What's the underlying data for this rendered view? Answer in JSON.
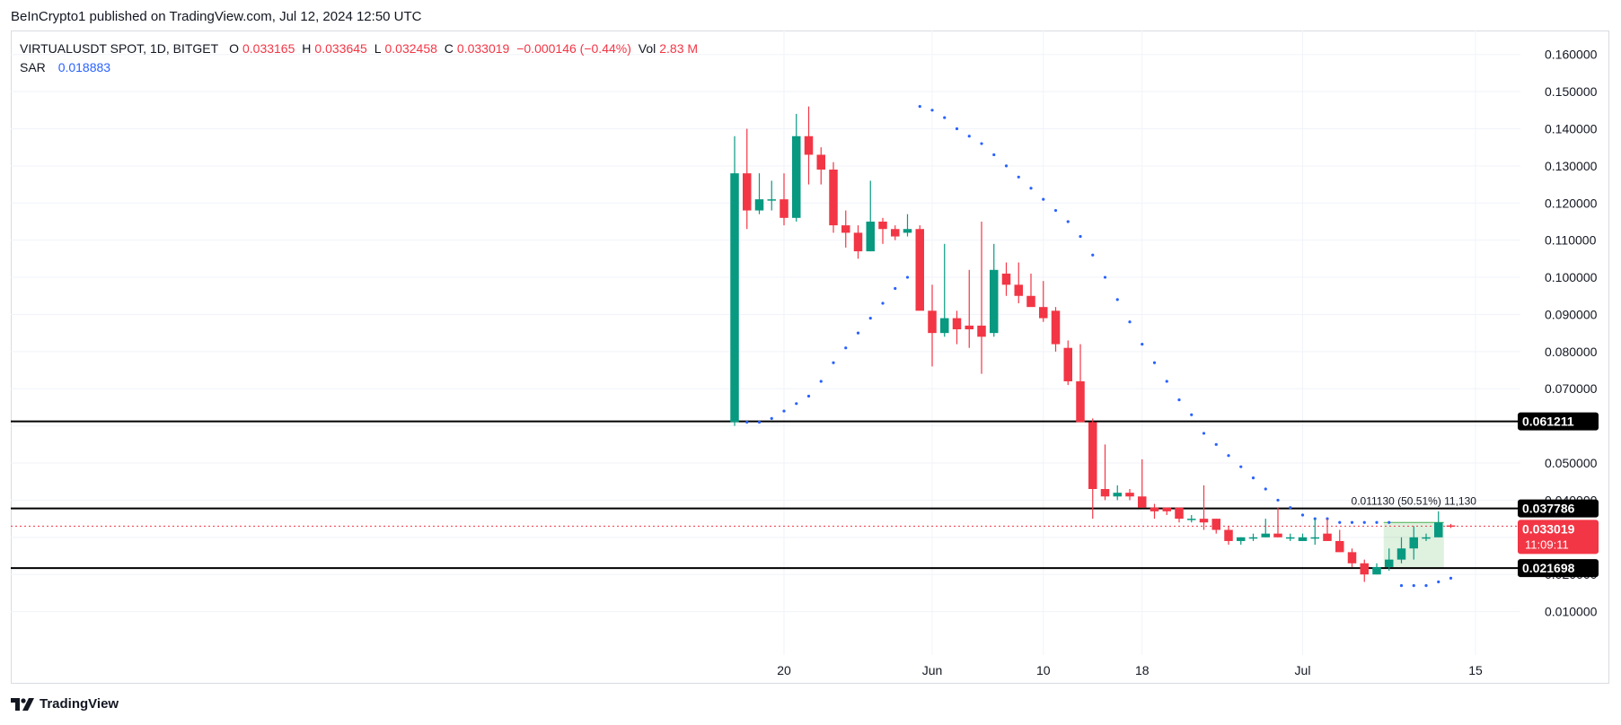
{
  "header": {
    "published": "BeInCrypto1 published on TradingView.com, Jul 12, 2024 12:50 UTC"
  },
  "legend": {
    "symbol": "VIRTUALUSDT SPOT, 1D, BITGET",
    "open_label": "O",
    "open": "0.033165",
    "high_label": "H",
    "high": "0.033645",
    "low_label": "L",
    "low": "0.032458",
    "close_label": "C",
    "close": "0.033019",
    "change": "−0.000146 (−0.44%)",
    "vol_label": "Vol",
    "vol": "2.83 M",
    "sar_label": "SAR",
    "sar": "0.018883"
  },
  "footer": {
    "brand": "TradingView",
    "logo_icon": "tradingview-logo-icon"
  },
  "colors": {
    "up": "#089981",
    "down": "#f23645",
    "sar": "#2962ff",
    "level": "#000000",
    "grid": "#f0f3fa"
  },
  "chart_data": {
    "type": "candlestick",
    "ylim": [
      0.0,
      0.165
    ],
    "yticks": [
      "0.010000",
      "0.020000",
      "0.030000",
      "0.040000",
      "0.050000",
      "0.060000",
      "0.070000",
      "0.080000",
      "0.090000",
      "0.100000",
      "0.110000",
      "0.120000",
      "0.130000",
      "0.140000",
      "0.150000",
      "0.160000"
    ],
    "xticks": [
      {
        "label": "20",
        "index": 4
      },
      {
        "label": "Jun",
        "index": 16
      },
      {
        "label": "10",
        "index": 25
      },
      {
        "label": "18",
        "index": 33
      },
      {
        "label": "Jul",
        "index": 46
      },
      {
        "label": "15",
        "index": 60
      }
    ],
    "levels": [
      {
        "value": 0.061211,
        "label": "0.061211"
      },
      {
        "value": 0.037786,
        "label": "0.037786"
      },
      {
        "value": 0.021698,
        "label": "0.021698"
      }
    ],
    "last_price": {
      "value": 0.033019,
      "label": "0.033019",
      "countdown": "11:09:11"
    },
    "measure_label": "0.011130 (50.51%) 11,130",
    "candles": [
      {
        "o": 0.061,
        "h": 0.138,
        "l": 0.06,
        "c": 0.128
      },
      {
        "o": 0.128,
        "h": 0.14,
        "l": 0.113,
        "c": 0.118
      },
      {
        "o": 0.118,
        "h": 0.128,
        "l": 0.117,
        "c": 0.121
      },
      {
        "o": 0.121,
        "h": 0.126,
        "l": 0.118,
        "c": 0.121
      },
      {
        "o": 0.121,
        "h": 0.128,
        "l": 0.114,
        "c": 0.116
      },
      {
        "o": 0.116,
        "h": 0.144,
        "l": 0.115,
        "c": 0.138
      },
      {
        "o": 0.138,
        "h": 0.146,
        "l": 0.125,
        "c": 0.133
      },
      {
        "o": 0.133,
        "h": 0.135,
        "l": 0.125,
        "c": 0.129
      },
      {
        "o": 0.129,
        "h": 0.131,
        "l": 0.112,
        "c": 0.114
      },
      {
        "o": 0.114,
        "h": 0.118,
        "l": 0.108,
        "c": 0.112
      },
      {
        "o": 0.112,
        "h": 0.114,
        "l": 0.105,
        "c": 0.107
      },
      {
        "o": 0.107,
        "h": 0.126,
        "l": 0.107,
        "c": 0.115
      },
      {
        "o": 0.115,
        "h": 0.116,
        "l": 0.109,
        "c": 0.113
      },
      {
        "o": 0.113,
        "h": 0.114,
        "l": 0.11,
        "c": 0.111
      },
      {
        "o": 0.112,
        "h": 0.117,
        "l": 0.111,
        "c": 0.113
      },
      {
        "o": 0.113,
        "h": 0.114,
        "l": 0.092,
        "c": 0.091
      },
      {
        "o": 0.091,
        "h": 0.098,
        "l": 0.076,
        "c": 0.085
      },
      {
        "o": 0.085,
        "h": 0.109,
        "l": 0.084,
        "c": 0.089
      },
      {
        "o": 0.089,
        "h": 0.091,
        "l": 0.082,
        "c": 0.086
      },
      {
        "o": 0.087,
        "h": 0.102,
        "l": 0.081,
        "c": 0.086
      },
      {
        "o": 0.087,
        "h": 0.115,
        "l": 0.074,
        "c": 0.084
      },
      {
        "o": 0.085,
        "h": 0.109,
        "l": 0.084,
        "c": 0.102
      },
      {
        "o": 0.101,
        "h": 0.104,
        "l": 0.095,
        "c": 0.098
      },
      {
        "o": 0.098,
        "h": 0.104,
        "l": 0.093,
        "c": 0.095
      },
      {
        "o": 0.095,
        "h": 0.101,
        "l": 0.093,
        "c": 0.092
      },
      {
        "o": 0.092,
        "h": 0.099,
        "l": 0.088,
        "c": 0.089
      },
      {
        "o": 0.091,
        "h": 0.092,
        "l": 0.08,
        "c": 0.082
      },
      {
        "o": 0.081,
        "h": 0.083,
        "l": 0.071,
        "c": 0.072
      },
      {
        "o": 0.072,
        "h": 0.082,
        "l": 0.062,
        "c": 0.061
      },
      {
        "o": 0.061,
        "h": 0.062,
        "l": 0.035,
        "c": 0.043
      },
      {
        "o": 0.043,
        "h": 0.055,
        "l": 0.04,
        "c": 0.041
      },
      {
        "o": 0.041,
        "h": 0.044,
        "l": 0.04,
        "c": 0.042
      },
      {
        "o": 0.042,
        "h": 0.043,
        "l": 0.04,
        "c": 0.041
      },
      {
        "o": 0.041,
        "h": 0.051,
        "l": 0.038,
        "c": 0.038
      },
      {
        "o": 0.038,
        "h": 0.039,
        "l": 0.035,
        "c": 0.037
      },
      {
        "o": 0.038,
        "h": 0.038,
        "l": 0.036,
        "c": 0.037
      },
      {
        "o": 0.038,
        "h": 0.038,
        "l": 0.034,
        "c": 0.035
      },
      {
        "o": 0.035,
        "h": 0.036,
        "l": 0.034,
        "c": 0.035
      },
      {
        "o": 0.035,
        "h": 0.044,
        "l": 0.032,
        "c": 0.034
      },
      {
        "o": 0.035,
        "h": 0.035,
        "l": 0.031,
        "c": 0.032
      },
      {
        "o": 0.032,
        "h": 0.033,
        "l": 0.028,
        "c": 0.029
      },
      {
        "o": 0.029,
        "h": 0.03,
        "l": 0.028,
        "c": 0.03
      },
      {
        "o": 0.03,
        "h": 0.031,
        "l": 0.029,
        "c": 0.03
      },
      {
        "o": 0.03,
        "h": 0.035,
        "l": 0.03,
        "c": 0.031
      },
      {
        "o": 0.031,
        "h": 0.038,
        "l": 0.03,
        "c": 0.03
      },
      {
        "o": 0.03,
        "h": 0.031,
        "l": 0.029,
        "c": 0.03
      },
      {
        "o": 0.029,
        "h": 0.031,
        "l": 0.029,
        "c": 0.03
      },
      {
        "o": 0.03,
        "h": 0.035,
        "l": 0.028,
        "c": 0.03
      },
      {
        "o": 0.031,
        "h": 0.035,
        "l": 0.029,
        "c": 0.029
      },
      {
        "o": 0.029,
        "h": 0.032,
        "l": 0.026,
        "c": 0.026
      },
      {
        "o": 0.026,
        "h": 0.027,
        "l": 0.022,
        "c": 0.023
      },
      {
        "o": 0.023,
        "h": 0.024,
        "l": 0.018,
        "c": 0.02
      },
      {
        "o": 0.02,
        "h": 0.023,
        "l": 0.02,
        "c": 0.022
      },
      {
        "o": 0.022,
        "h": 0.027,
        "l": 0.021,
        "c": 0.024
      },
      {
        "o": 0.024,
        "h": 0.03,
        "l": 0.023,
        "c": 0.027
      },
      {
        "o": 0.027,
        "h": 0.033,
        "l": 0.024,
        "c": 0.03
      },
      {
        "o": 0.03,
        "h": 0.031,
        "l": 0.029,
        "c": 0.03
      },
      {
        "o": 0.03,
        "h": 0.037,
        "l": 0.03,
        "c": 0.034
      },
      {
        "o": 0.0332,
        "h": 0.0336,
        "l": 0.0325,
        "c": 0.033
      }
    ],
    "sar_dots": [
      {
        "i": 1,
        "v": 0.061
      },
      {
        "i": 2,
        "v": 0.061
      },
      {
        "i": 3,
        "v": 0.062
      },
      {
        "i": 4,
        "v": 0.064
      },
      {
        "i": 5,
        "v": 0.066
      },
      {
        "i": 6,
        "v": 0.068
      },
      {
        "i": 7,
        "v": 0.072
      },
      {
        "i": 8,
        "v": 0.077
      },
      {
        "i": 9,
        "v": 0.081
      },
      {
        "i": 10,
        "v": 0.085
      },
      {
        "i": 11,
        "v": 0.089
      },
      {
        "i": 12,
        "v": 0.093
      },
      {
        "i": 13,
        "v": 0.097
      },
      {
        "i": 14,
        "v": 0.1
      },
      {
        "i": 15,
        "v": 0.146
      },
      {
        "i": 16,
        "v": 0.145
      },
      {
        "i": 17,
        "v": 0.143
      },
      {
        "i": 18,
        "v": 0.14
      },
      {
        "i": 19,
        "v": 0.138
      },
      {
        "i": 20,
        "v": 0.136
      },
      {
        "i": 21,
        "v": 0.133
      },
      {
        "i": 22,
        "v": 0.13
      },
      {
        "i": 23,
        "v": 0.127
      },
      {
        "i": 24,
        "v": 0.124
      },
      {
        "i": 25,
        "v": 0.121
      },
      {
        "i": 26,
        "v": 0.118
      },
      {
        "i": 27,
        "v": 0.115
      },
      {
        "i": 28,
        "v": 0.111
      },
      {
        "i": 29,
        "v": 0.106
      },
      {
        "i": 30,
        "v": 0.1
      },
      {
        "i": 31,
        "v": 0.094
      },
      {
        "i": 32,
        "v": 0.088
      },
      {
        "i": 33,
        "v": 0.082
      },
      {
        "i": 34,
        "v": 0.077
      },
      {
        "i": 35,
        "v": 0.072
      },
      {
        "i": 36,
        "v": 0.067
      },
      {
        "i": 37,
        "v": 0.063
      },
      {
        "i": 38,
        "v": 0.058
      },
      {
        "i": 39,
        "v": 0.055
      },
      {
        "i": 40,
        "v": 0.052
      },
      {
        "i": 41,
        "v": 0.049
      },
      {
        "i": 42,
        "v": 0.046
      },
      {
        "i": 43,
        "v": 0.043
      },
      {
        "i": 44,
        "v": 0.04
      },
      {
        "i": 45,
        "v": 0.038
      },
      {
        "i": 46,
        "v": 0.036
      },
      {
        "i": 47,
        "v": 0.035
      },
      {
        "i": 48,
        "v": 0.035
      },
      {
        "i": 49,
        "v": 0.034
      },
      {
        "i": 50,
        "v": 0.034
      },
      {
        "i": 51,
        "v": 0.034
      },
      {
        "i": 52,
        "v": 0.034
      },
      {
        "i": 53,
        "v": 0.034
      },
      {
        "i": 54,
        "v": 0.017
      },
      {
        "i": 55,
        "v": 0.017
      },
      {
        "i": 56,
        "v": 0.017
      },
      {
        "i": 57,
        "v": 0.018
      },
      {
        "i": 58,
        "v": 0.019
      }
    ]
  }
}
